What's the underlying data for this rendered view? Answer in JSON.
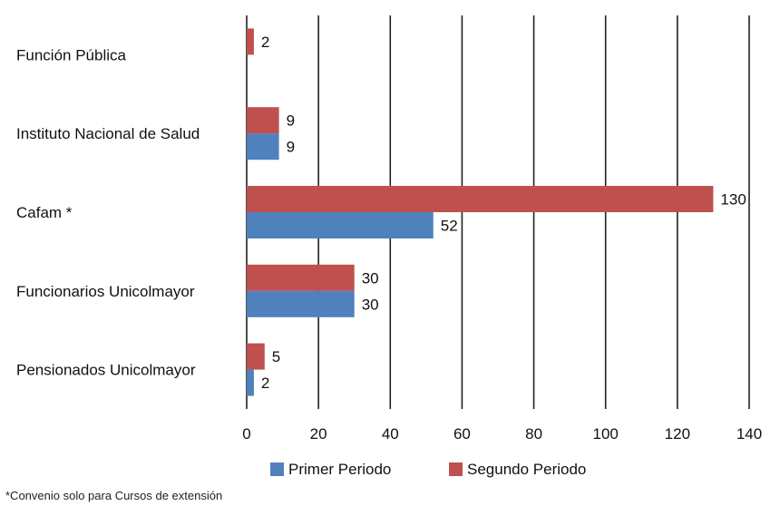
{
  "chart_data": {
    "type": "bar",
    "orientation": "horizontal",
    "categories": [
      "Función Pública",
      "Instituto Nacional de Salud",
      "Cafam *",
      "Funcionarios Unicolmayor",
      "Pensionados Unicolmayor"
    ],
    "series": [
      {
        "name": "Primer Periodo",
        "color": "#4F81BD",
        "values": [
          null,
          9,
          52,
          30,
          2
        ]
      },
      {
        "name": "Segundo Periodo",
        "color": "#C0504D",
        "values": [
          2,
          9,
          130,
          30,
          5
        ]
      }
    ],
    "xlim": [
      0,
      140
    ],
    "xticks": [
      0,
      20,
      40,
      60,
      80,
      100,
      120,
      140
    ],
    "grid": "vertical",
    "legend": "bottom",
    "data_labels": true,
    "footnote": "*Convenio solo para Cursos de extensión"
  }
}
